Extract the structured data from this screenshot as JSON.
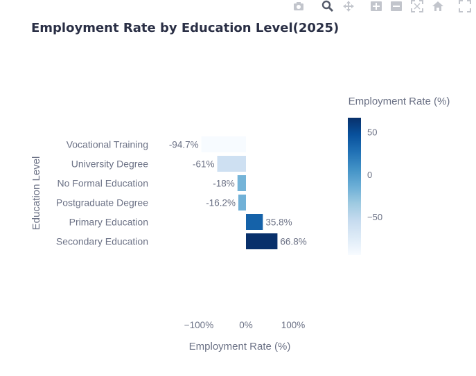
{
  "chart_data": {
    "type": "bar",
    "orientation": "horizontal",
    "title": "Employment Rate by Education Level(2025)",
    "xlabel": "Employment Rate (%)",
    "ylabel": "Education Level",
    "categories": [
      "Vocational Training",
      "University Degree",
      "No Formal Education",
      "Postgraduate Degree",
      "Primary Education",
      "Secondary Education"
    ],
    "values": [
      -94.7,
      -61,
      -18,
      -16.2,
      35.8,
      66.8
    ],
    "data_labels": [
      "-94.7%",
      "-61%",
      "-18%",
      "-16.2%",
      "35.8%",
      "66.8%"
    ],
    "xlim": [
      -130,
      130
    ],
    "xticks": [
      -100,
      0,
      100
    ],
    "xtick_labels": [
      "−100%",
      "0%",
      "100%"
    ],
    "grid": false,
    "colorbar": {
      "title": "Employment Rate (%)",
      "range": [
        -94.7,
        66.8
      ],
      "ticks": [
        50,
        0,
        -50
      ],
      "tick_labels": [
        "50",
        "0",
        "−50"
      ],
      "colorscale": [
        "#f7fbff",
        "#deebf7",
        "#c6dbef",
        "#9ecae1",
        "#6baed6",
        "#4292c6",
        "#2171b5",
        "#08519c",
        "#08306b"
      ]
    }
  },
  "toolbar": {
    "icons": [
      "camera-icon",
      "zoom-icon",
      "pan-icon",
      "zoom-in-icon",
      "zoom-out-icon",
      "autoscale-icon",
      "home-icon",
      "fullscreen-icon"
    ],
    "color": "#c2c5cc"
  }
}
